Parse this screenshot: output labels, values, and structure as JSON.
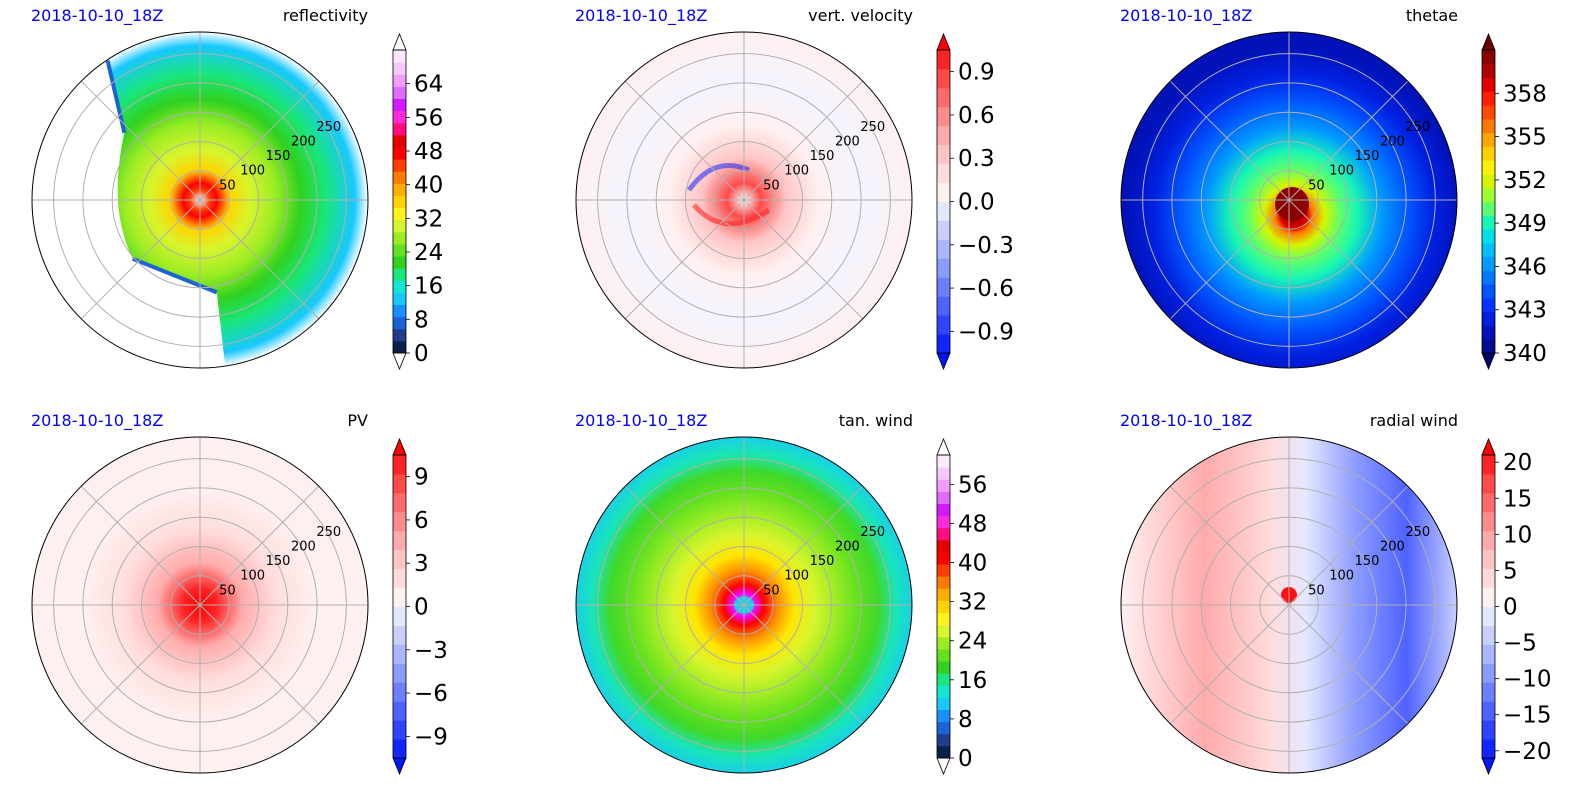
{
  "figure": {
    "panels": [
      {
        "date": "2018-10-10_18Z",
        "field": "reflectivity",
        "colorbar": {
          "ticks": [
            "0",
            "8",
            "16",
            "24",
            "32",
            "40",
            "48",
            "56",
            "64"
          ],
          "colors": [
            "#0b1f4d",
            "#1f3d8a",
            "#1c62d6",
            "#1890ff",
            "#19c8ff",
            "#13e6d1",
            "#19e67b",
            "#30d11f",
            "#63e11f",
            "#9cec24",
            "#d7f52d",
            "#fff21e",
            "#ffd400",
            "#ffae00",
            "#ff7b00",
            "#ff3d00",
            "#ff0000",
            "#e60000",
            "#ff0d7d",
            "#ff2bd9",
            "#d11bff",
            "#e06cff",
            "#ef9dff",
            "#f7c8ff",
            "#fde8ff"
          ],
          "extend_low_color": "#ffffff",
          "extend_high_color": "#ffffff",
          "min": 0,
          "max": 72,
          "outline_color": "#000000"
        },
        "ring_labels": [
          "50",
          "100",
          "150",
          "200",
          "250"
        ]
      },
      {
        "date": "2018-10-10_18Z",
        "field": "vert. velocity",
        "colorbar": {
          "ticks": [
            "−0.9",
            "−0.6",
            "−0.3",
            "0.0",
            "0.3",
            "0.6",
            "0.9"
          ],
          "colors": [
            "#1326ff",
            "#2f44ff",
            "#4e62ff",
            "#6c7fff",
            "#8c9bff",
            "#aab6ff",
            "#c7cfff",
            "#e4e8ff",
            "#fff0f0",
            "#ffdcdc",
            "#ffc4c4",
            "#ffaaaa",
            "#ff8c8c",
            "#ff6b6b",
            "#ff4a4a",
            "#ff2424"
          ],
          "extend_low_color": "#0014ff",
          "extend_high_color": "#ff0000",
          "min": -1.05,
          "max": 1.05,
          "outline_color": "#000000"
        },
        "ring_labels": [
          "50",
          "100",
          "150",
          "200",
          "250"
        ]
      },
      {
        "date": "2018-10-10_18Z",
        "field": "thetae",
        "colorbar": {
          "ticks": [
            "340",
            "343",
            "346",
            "349",
            "352",
            "355",
            "358"
          ],
          "colors": [
            "#000a8c",
            "#0012b8",
            "#0020e0",
            "#0035ff",
            "#0055ff",
            "#0078ff",
            "#009bff",
            "#00bfff",
            "#00dfe8",
            "#19f5b4",
            "#5cff6e",
            "#9cff2e",
            "#d4f500",
            "#fff200",
            "#ffcf00",
            "#ffa400",
            "#ff7800",
            "#ff4800",
            "#ff1c00",
            "#e00000",
            "#b00000",
            "#8c0000"
          ],
          "extend_low_color": "#00006a",
          "extend_high_color": "#6a0000",
          "min": 340,
          "max": 361,
          "outline_color": "#000000"
        },
        "ring_labels": [
          "50",
          "100",
          "150",
          "200",
          "250"
        ]
      },
      {
        "date": "2018-10-10_18Z",
        "field": "PV",
        "colorbar": {
          "ticks": [
            "−9",
            "−6",
            "−3",
            "0",
            "3",
            "6",
            "9"
          ],
          "colors": [
            "#1326ff",
            "#2f44ff",
            "#4e62ff",
            "#6c7fff",
            "#8c9bff",
            "#aab6ff",
            "#c7cfff",
            "#e4e8ff",
            "#fff0f0",
            "#ffdcdc",
            "#ffc4c4",
            "#ffaaaa",
            "#ff8c8c",
            "#ff6b6b",
            "#ff4a4a",
            "#ff2424"
          ],
          "extend_low_color": "#0014ff",
          "extend_high_color": "#ff0000",
          "min": -10.5,
          "max": 10.5,
          "outline_color": "#000000"
        },
        "ring_labels": [
          "50",
          "100",
          "150",
          "200",
          "250"
        ]
      },
      {
        "date": "2018-10-10_18Z",
        "field": "tan. wind",
        "colorbar": {
          "ticks": [
            "0",
            "8",
            "16",
            "24",
            "32",
            "40",
            "48",
            "56"
          ],
          "colors": [
            "#0b1f4d",
            "#1f3d8a",
            "#1c62d6",
            "#1890ff",
            "#19c8ff",
            "#13e6d1",
            "#19e67b",
            "#30d11f",
            "#63e11f",
            "#9cec24",
            "#d7f52d",
            "#fff21e",
            "#ffd400",
            "#ffae00",
            "#ff7b00",
            "#ff3d00",
            "#ff0000",
            "#e60000",
            "#ff0d7d",
            "#ff2bd9",
            "#d11bff",
            "#e06cff",
            "#ef9dff",
            "#f7c8ff",
            "#fde8ff"
          ],
          "extend_low_color": "#ffffff",
          "extend_high_color": "#ffffff",
          "min": 0,
          "max": 62,
          "outline_color": "#000000"
        },
        "ring_labels": [
          "50",
          "100",
          "150",
          "200",
          "250"
        ]
      },
      {
        "date": "2018-10-10_18Z",
        "field": "radial wind",
        "colorbar": {
          "ticks": [
            "−20",
            "−15",
            "−10",
            "−5",
            "0",
            "5",
            "10",
            "15",
            "20"
          ],
          "colors": [
            "#1326ff",
            "#2f44ff",
            "#4e62ff",
            "#6c7fff",
            "#8c9bff",
            "#aab6ff",
            "#c7cfff",
            "#e4e8ff",
            "#fff0f0",
            "#ffdcdc",
            "#ffc4c4",
            "#ffaaaa",
            "#ff8c8c",
            "#ff6b6b",
            "#ff4a4a",
            "#ff2424"
          ],
          "extend_low_color": "#0014ff",
          "extend_high_color": "#ff0000",
          "min": -21,
          "max": 21,
          "outline_color": "#000000"
        },
        "ring_labels": [
          "50",
          "100",
          "150",
          "200",
          "250"
        ]
      }
    ],
    "date_color": "#0000ff"
  },
  "chart_data": [
    {
      "type": "heatmap",
      "title": "reflectivity",
      "colorbar_range": [
        0,
        72
      ],
      "colorbar_ticks": [
        0,
        8,
        16,
        24,
        32,
        40,
        48,
        56,
        64
      ],
      "radial_rings": [
        50,
        100,
        150,
        200,
        250
      ]
    },
    {
      "type": "heatmap",
      "title": "vert. velocity",
      "colorbar_range": [
        -1.05,
        1.05
      ],
      "colorbar_ticks": [
        -0.9,
        -0.6,
        -0.3,
        0.0,
        0.3,
        0.6,
        0.9
      ],
      "radial_rings": [
        50,
        100,
        150,
        200,
        250
      ]
    },
    {
      "type": "heatmap",
      "title": "thetae",
      "colorbar_range": [
        340,
        361
      ],
      "colorbar_ticks": [
        340,
        343,
        346,
        349,
        352,
        355,
        358
      ],
      "radial_rings": [
        50,
        100,
        150,
        200,
        250
      ]
    },
    {
      "type": "heatmap",
      "title": "PV",
      "colorbar_range": [
        -10.5,
        10.5
      ],
      "colorbar_ticks": [
        -9,
        -6,
        -3,
        0,
        3,
        6,
        9
      ],
      "radial_rings": [
        50,
        100,
        150,
        200,
        250
      ]
    },
    {
      "type": "heatmap",
      "title": "tan. wind",
      "colorbar_range": [
        0,
        62
      ],
      "colorbar_ticks": [
        0,
        8,
        16,
        24,
        32,
        40,
        48,
        56
      ],
      "radial_rings": [
        50,
        100,
        150,
        200,
        250
      ]
    },
    {
      "type": "heatmap",
      "title": "radial wind",
      "colorbar_range": [
        -21,
        21
      ],
      "colorbar_ticks": [
        -20,
        -15,
        -10,
        -5,
        0,
        5,
        10,
        15,
        20
      ],
      "radial_rings": [
        50,
        100,
        150,
        200,
        250
      ]
    }
  ]
}
